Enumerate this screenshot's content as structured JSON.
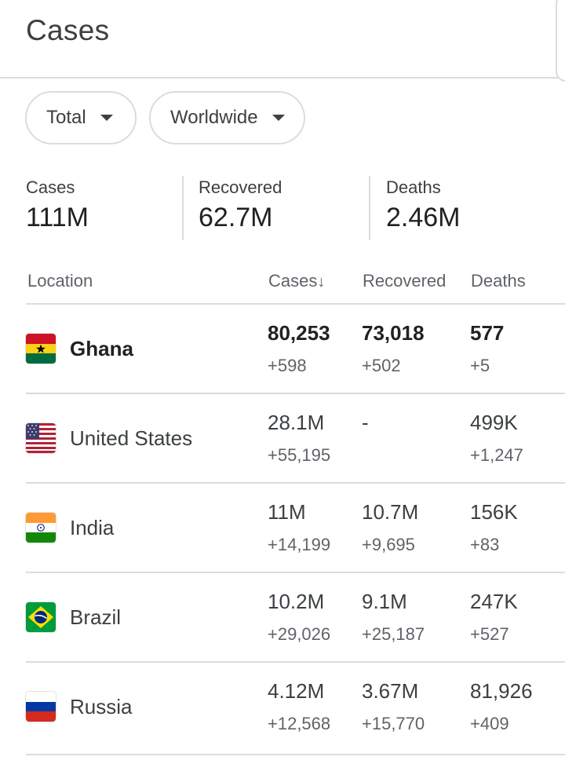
{
  "header": {
    "title": "Cases"
  },
  "filters": {
    "total_label": "Total",
    "region_label": "Worldwide"
  },
  "summary": {
    "cases_label": "Cases",
    "cases_value": "111M",
    "recovered_label": "Recovered",
    "recovered_value": "62.7M",
    "deaths_label": "Deaths",
    "deaths_value": "2.46M"
  },
  "table": {
    "headers": {
      "location": "Location",
      "cases": "Cases",
      "cases_sort": "↓",
      "recovered": "Recovered",
      "deaths": "Deaths"
    },
    "rows": [
      {
        "country": "Ghana",
        "flag": "ghana-flag-icon",
        "cases": "80,253",
        "cases_delta": "+598",
        "recovered": "73,018",
        "recovered_delta": "+502",
        "deaths": "577",
        "deaths_delta": "+5"
      },
      {
        "country": "United States",
        "flag": "usa-flag-icon",
        "cases": "28.1M",
        "cases_delta": "+55,195",
        "recovered": "-",
        "recovered_delta": "",
        "deaths": "499K",
        "deaths_delta": "+1,247"
      },
      {
        "country": "India",
        "flag": "india-flag-icon",
        "cases": "11M",
        "cases_delta": "+14,199",
        "recovered": "10.7M",
        "recovered_delta": "+9,695",
        "deaths": "156K",
        "deaths_delta": "+83"
      },
      {
        "country": "Brazil",
        "flag": "brazil-flag-icon",
        "cases": "10.2M",
        "cases_delta": "+29,026",
        "recovered": "9.1M",
        "recovered_delta": "+25,187",
        "deaths": "247K",
        "deaths_delta": "+527"
      },
      {
        "country": "Russia",
        "flag": "russia-flag-icon",
        "cases": "4.12M",
        "cases_delta": "+12,568",
        "recovered": "3.67M",
        "recovered_delta": "+15,770",
        "deaths": "81,926",
        "deaths_delta": "+409"
      }
    ]
  }
}
